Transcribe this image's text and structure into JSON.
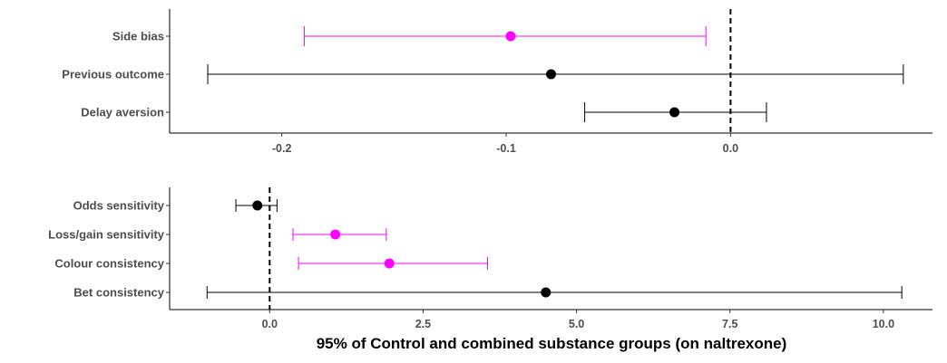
{
  "chart_data": [
    {
      "type": "forest",
      "categories": [
        "Side bias",
        "Previous outcome",
        "Delay aversion"
      ],
      "series": [
        {
          "category": "Side bias",
          "estimate": -0.098,
          "lower": -0.19,
          "upper": -0.011,
          "color": "#ff00ff"
        },
        {
          "category": "Previous outcome",
          "estimate": -0.08,
          "lower": -0.233,
          "upper": 0.077,
          "color": "#000000"
        },
        {
          "category": "Delay aversion",
          "estimate": -0.025,
          "lower": -0.065,
          "upper": 0.016,
          "color": "#000000"
        }
      ],
      "x_ticks": [
        "-0.2",
        "-0.1",
        "0.0"
      ],
      "tick_values": [
        -0.2,
        -0.1,
        0.0
      ],
      "xlim": [
        -0.25,
        0.09
      ],
      "reference_line": 0,
      "xlabel": "",
      "grid": false
    },
    {
      "type": "forest",
      "categories": [
        "Odds sensitivity",
        "Loss/gain sensitivity",
        "Colour consistency",
        "Bet consistency"
      ],
      "series": [
        {
          "category": "Odds sensitivity",
          "estimate": -0.2,
          "lower": -0.55,
          "upper": 0.12,
          "color": "#000000"
        },
        {
          "category": "Loss/gain sensitivity",
          "estimate": 1.07,
          "lower": 0.38,
          "upper": 1.9,
          "color": "#ff00ff"
        },
        {
          "category": "Colour consistency",
          "estimate": 1.95,
          "lower": 0.47,
          "upper": 3.55,
          "color": "#ff00ff"
        },
        {
          "category": "Bet consistency",
          "estimate": 4.5,
          "lower": -1.02,
          "upper": 10.3,
          "color": "#000000"
        }
      ],
      "x_ticks": [
        "0.0",
        "2.5",
        "5.0",
        "7.5",
        "10.0"
      ],
      "tick_values": [
        0,
        2.5,
        5.0,
        7.5,
        10.0
      ],
      "xlim": [
        -1.63,
        10.8
      ],
      "reference_line": 0,
      "xlabel": "95% of Control and combined substance groups (on naltrexone)",
      "grid": false
    }
  ]
}
